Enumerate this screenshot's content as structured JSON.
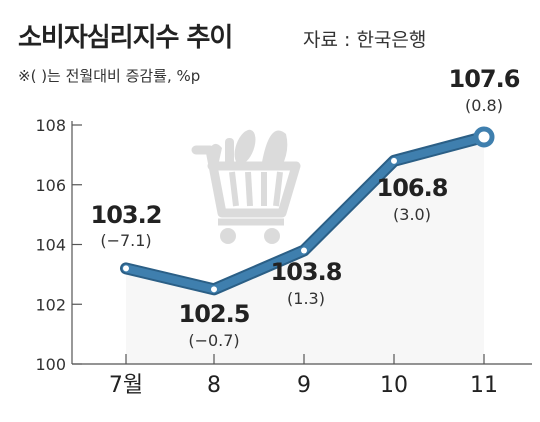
{
  "header": {
    "title": "소비자심리지수 추이",
    "source": "자료 : 한국은행",
    "note": "※( )는 전월대비 증감률, %p"
  },
  "colors": {
    "line": "#3f7fae",
    "line_dark": "#2b5f86",
    "area": "#f7f7f7",
    "axis": "#555555",
    "icon": "#d8d8d8"
  },
  "decor": {
    "icon": "shopping-cart-icon"
  },
  "chart_data": {
    "type": "line",
    "categories": [
      "7월",
      "8",
      "9",
      "10",
      "11"
    ],
    "values": [
      103.2,
      102.5,
      103.8,
      106.8,
      107.6
    ],
    "changes": [
      "(−7.1)",
      "(−0.7)",
      "(1.3)",
      "(3.0)",
      "(0.8)"
    ],
    "value_labels": [
      "103.2",
      "102.5",
      "103.8",
      "106.8",
      "107.6"
    ],
    "ylim": [
      100,
      108
    ],
    "yticks": [
      "100",
      "102",
      "104",
      "106",
      "108"
    ],
    "grid": false,
    "marker": "last-point"
  }
}
